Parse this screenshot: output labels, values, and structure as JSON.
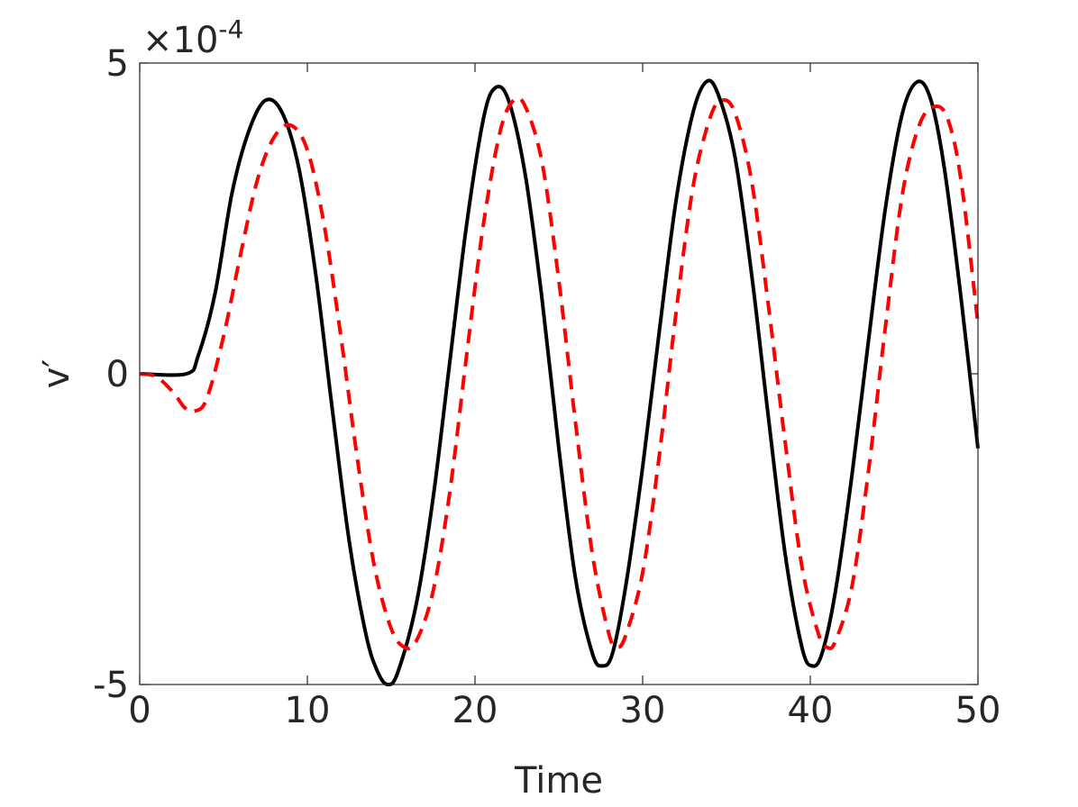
{
  "chart_data": {
    "type": "line",
    "xlabel": "Time",
    "ylabel": "v′",
    "xlim": [
      0,
      50
    ],
    "ylim": [
      -5,
      5
    ],
    "y_multiplier": {
      "base": "×10",
      "exponent": "-4"
    },
    "x_ticks": [
      {
        "value": 0,
        "label": "0"
      },
      {
        "value": 10,
        "label": "10"
      },
      {
        "value": 20,
        "label": "20"
      },
      {
        "value": 30,
        "label": "30"
      },
      {
        "value": 40,
        "label": "40"
      },
      {
        "value": 50,
        "label": "50"
      }
    ],
    "y_ticks": [
      {
        "value": 5,
        "label": "5"
      },
      {
        "value": 0,
        "label": "0"
      },
      {
        "value": -5,
        "label": "-5"
      }
    ],
    "grid": false,
    "series": [
      {
        "color": "#000000",
        "style": "solid",
        "x": [
          0,
          2.8,
          3.5,
          4.5,
          5.5,
          6.5,
          7.5,
          8.5,
          9.5,
          10.5,
          11.5,
          12.5,
          13.5,
          14.2,
          14.8,
          15.4,
          16.5,
          17.5,
          18.5,
          19.5,
          20.5,
          21.2,
          22,
          23,
          24,
          25,
          26,
          27,
          27.6,
          28.2,
          29,
          30,
          31,
          32,
          33,
          33.8,
          34.5,
          35.5,
          36.5,
          37.5,
          38.5,
          39.5,
          40.1,
          40.7,
          41.5,
          42.5,
          43.5,
          44.5,
          45.5,
          46.4,
          47.2,
          48,
          49,
          50
        ],
        "y": [
          0,
          0,
          0.3,
          1.3,
          2.9,
          3.9,
          4.4,
          4.2,
          3.3,
          1.6,
          -0.6,
          -2.7,
          -4.2,
          -4.8,
          -5.0,
          -4.8,
          -3.7,
          -2.0,
          0.2,
          2.4,
          4.1,
          4.6,
          4.4,
          3.2,
          1.2,
          -1.2,
          -3.3,
          -4.5,
          -4.7,
          -4.5,
          -3.4,
          -1.5,
          0.7,
          2.8,
          4.2,
          4.7,
          4.5,
          3.5,
          1.6,
          -0.7,
          -2.9,
          -4.4,
          -4.7,
          -4.5,
          -3.5,
          -1.6,
          0.6,
          2.7,
          4.2,
          4.7,
          4.4,
          3.3,
          1.2,
          -1.2
        ]
      },
      {
        "color": "#ff0000",
        "style": "dashed",
        "x": [
          0,
          1,
          2,
          2.7,
          3.3,
          4,
          5,
          6,
          7,
          8,
          9,
          10,
          11,
          12,
          13,
          14,
          15,
          15.8,
          16.5,
          17.5,
          18.5,
          19.5,
          20.5,
          21.5,
          22.3,
          23,
          24,
          25,
          26,
          27,
          28,
          28.5,
          29,
          30,
          31,
          32,
          33,
          34,
          34.7,
          35.5,
          36.5,
          37.5,
          38.5,
          39.5,
          40.5,
          41,
          41.5,
          42.5,
          43.5,
          44.5,
          45.5,
          46.5,
          47.4,
          48.2,
          49,
          50
        ],
        "y": [
          0,
          -0.05,
          -0.3,
          -0.55,
          -0.6,
          -0.4,
          0.6,
          1.9,
          3.1,
          3.8,
          4.0,
          3.6,
          2.4,
          0.6,
          -1.4,
          -3.1,
          -4.1,
          -4.4,
          -4.3,
          -3.5,
          -1.9,
          0.3,
          2.4,
          3.9,
          4.4,
          4.3,
          3.4,
          1.5,
          -0.8,
          -2.9,
          -4.2,
          -4.4,
          -4.2,
          -3.2,
          -1.3,
          1.0,
          3.0,
          4.1,
          4.4,
          4.2,
          3.1,
          1.1,
          -1.1,
          -3.1,
          -4.2,
          -4.4,
          -4.3,
          -3.4,
          -1.5,
          0.8,
          2.9,
          4.0,
          4.3,
          4.1,
          3.1,
          0.8
        ]
      }
    ]
  }
}
